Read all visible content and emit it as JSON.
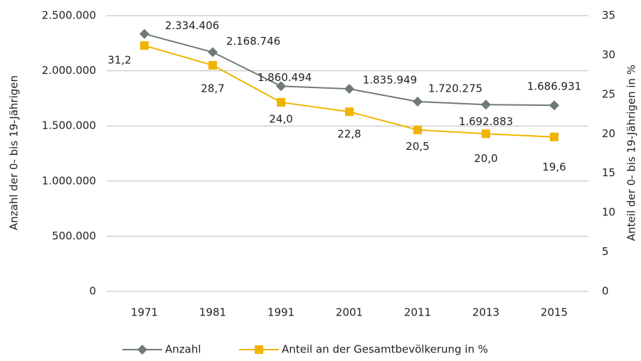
{
  "chart_data": {
    "type": "line",
    "categories": [
      "1971",
      "1981",
      "1991",
      "2001",
      "2011",
      "2013",
      "2015"
    ],
    "series": [
      {
        "name": "Anzahl",
        "color": "#6f7a72",
        "values": [
          2334406,
          2168746,
          1860494,
          1835949,
          1720275,
          1692883,
          1686931
        ],
        "value_labels": [
          "2.334.406",
          "2.168.746",
          "1.860.494",
          "1.835.949",
          "1.720.275",
          "1.692.883",
          "1.686.931"
        ]
      },
      {
        "name": "Anteil an der Gesamtbevölkerung in %",
        "color": "#f0b400",
        "axis": "y2",
        "values": [
          31.2,
          28.7,
          24.0,
          22.8,
          20.5,
          20.0,
          19.6
        ],
        "value_labels": [
          "31,2",
          "28,7",
          "24,0",
          "22,8",
          "20,5",
          "20,0",
          "19,6"
        ]
      }
    ],
    "ylabel": "Anzahl der 0- bis 19-Jährigen",
    "y2label": "Anteil der 0- bis 19-Jährigen in %",
    "ylim": [
      0,
      2500000
    ],
    "yticks": [
      0,
      {
        "value": 500000,
        "label": "500.000"
      },
      {
        "value": 1000000,
        "label": "1.000.000"
      },
      {
        "value": 1500000,
        "label": "1.500.000"
      },
      {
        "value": 2000000,
        "label": "2.000.000"
      },
      {
        "value": 2500000,
        "label": "2.500.000"
      }
    ],
    "y2lim": [
      0,
      35
    ],
    "y2ticks": [
      0,
      5,
      10,
      15,
      20,
      25,
      30,
      35
    ],
    "grid": true,
    "legend": "bottom"
  }
}
